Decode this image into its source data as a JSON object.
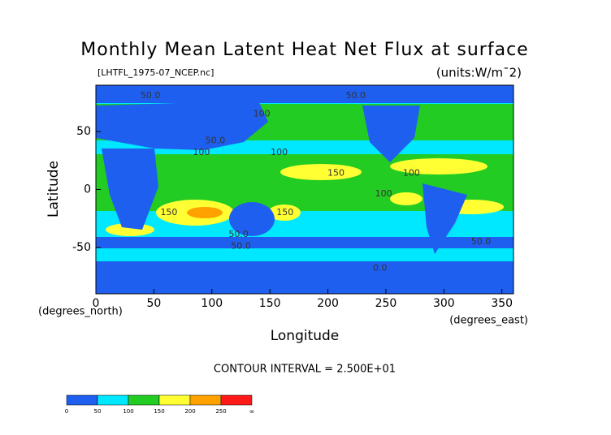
{
  "chart_data": {
    "type": "contour",
    "title": "Monthly Mean Latent Heat Net Flux at surface",
    "source": "[LHTFL_1975-07_NCEP.nc]",
    "units": "(units:W/m¯2)",
    "x_label": "Longitude",
    "x_unit": "(degrees_east)",
    "y_label": "Latitude",
    "y_unit": "(degrees_north)",
    "note": "CONTOUR INTERVAL = 2.500E+01",
    "xlim": [
      0,
      360
    ],
    "ylim": [
      -90,
      90
    ],
    "xticks": [
      0,
      50,
      100,
      150,
      200,
      250,
      300,
      350
    ],
    "yticks": [
      -50,
      0,
      50
    ],
    "annotations": [
      {
        "text": "50.0",
        "x": 47,
        "y": 81
      },
      {
        "text": "100",
        "x": 143,
        "y": 65
      },
      {
        "text": "50.0",
        "x": 224,
        "y": 81
      },
      {
        "text": "50.0",
        "x": 103,
        "y": 42
      },
      {
        "text": "100",
        "x": 91,
        "y": 32
      },
      {
        "text": "100",
        "x": 158,
        "y": 32
      },
      {
        "text": "150",
        "x": 207,
        "y": 14
      },
      {
        "text": "100",
        "x": 272,
        "y": 14
      },
      {
        "text": "100",
        "x": 248,
        "y": -4
      },
      {
        "text": "150",
        "x": 63,
        "y": -20
      },
      {
        "text": "150",
        "x": 163,
        "y": -20
      },
      {
        "text": "50.0",
        "x": 123,
        "y": -39
      },
      {
        "text": "50.0",
        "x": 125,
        "y": -49
      },
      {
        "text": "50.0",
        "x": 332,
        "y": -45
      },
      {
        "text": "0.0",
        "x": 245,
        "y": -68
      }
    ],
    "colorbar": {
      "ticks": [
        0,
        50,
        100,
        150,
        200,
        250
      ],
      "end_label": "∞",
      "colors": [
        "#1f5ff0",
        "#00e8ff",
        "#22cc22",
        "#ffff33",
        "#ffa200",
        "#ff1a1a"
      ]
    }
  }
}
